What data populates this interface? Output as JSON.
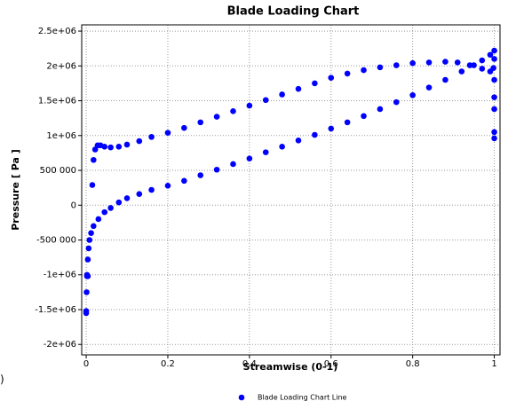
{
  "chart_data": {
    "type": "scatter",
    "title": "Blade Loading Chart",
    "x_label": "Streamwise (0-1)",
    "y_label": "Pressure [ Pa ]",
    "annotation": ")",
    "xlim": [
      -0.011,
      1.014
    ],
    "ylim": [
      -2150000,
      2590000
    ],
    "xticks": [
      0,
      0.2,
      0.4,
      0.6,
      0.8,
      1
    ],
    "yticks": [
      {
        "value": -2000000,
        "label": "-2e+06"
      },
      {
        "value": -1500000,
        "label": "-1.5e+06"
      },
      {
        "value": -1000000,
        "label": "-1e+06"
      },
      {
        "value": -500000,
        "label": "-500 000"
      },
      0,
      {
        "value": 500000,
        "label": "500 000"
      },
      {
        "value": 1000000,
        "label": "1e+06"
      },
      {
        "value": 1500000,
        "label": "1.5e+06"
      },
      {
        "value": 2000000,
        "label": "2e+06"
      },
      {
        "value": 2500000,
        "label": "2.5e+06"
      }
    ],
    "grid": true,
    "legend": "bottom",
    "series": [
      {
        "name": "Blade Loading Chart Line",
        "color": "#0000ff",
        "x": [
          0,
          0,
          0.001,
          0.002,
          0.002,
          0.004,
          0.004,
          0.006,
          0.008,
          0.012,
          0.018,
          0.03,
          0.045,
          0.06,
          0.08,
          0.1,
          0.13,
          0.16,
          0.2,
          0.24,
          0.28,
          0.32,
          0.36,
          0.4,
          0.44,
          0.48,
          0.52,
          0.56,
          0.6,
          0.64,
          0.68,
          0.72,
          0.76,
          0.8,
          0.84,
          0.88,
          0.92,
          0.95,
          0.97,
          0.99,
          1.0,
          0.015,
          0.018,
          0.022,
          0.028,
          0.035,
          0.045,
          0.06,
          0.08,
          0.1,
          0.13,
          0.16,
          0.2,
          0.24,
          0.28,
          0.32,
          0.36,
          0.4,
          0.44,
          0.48,
          0.52,
          0.56,
          0.6,
          0.64,
          0.68,
          0.72,
          0.76,
          0.8,
          0.84,
          0.88,
          0.91,
          0.94,
          0.97,
          0.99,
          0.998,
          1.0,
          1.0,
          1.0,
          1.0,
          1.0,
          1.0
        ],
        "values": [
          -1550000,
          -1520000,
          -1250000,
          -1020000,
          -1000000,
          -780000,
          -1020000,
          -620000,
          -500000,
          -400000,
          -300000,
          -200000,
          -100000,
          -40000,
          40000,
          100000,
          160000,
          220000,
          280000,
          350000,
          430000,
          510000,
          590000,
          670000,
          760000,
          840000,
          930000,
          1010000,
          1100000,
          1190000,
          1280000,
          1380000,
          1480000,
          1580000,
          1690000,
          1800000,
          1920000,
          2010000,
          2080000,
          2160000,
          2220000,
          290000,
          650000,
          800000,
          860000,
          860000,
          840000,
          830000,
          840000,
          870000,
          920000,
          980000,
          1040000,
          1110000,
          1190000,
          1270000,
          1350000,
          1430000,
          1510000,
          1590000,
          1670000,
          1750000,
          1830000,
          1890000,
          1940000,
          1980000,
          2010000,
          2040000,
          2050000,
          2060000,
          2050000,
          2010000,
          1960000,
          1920000,
          1970000,
          2100000,
          1800000,
          1550000,
          1380000,
          1050000,
          960000
        ]
      }
    ]
  }
}
